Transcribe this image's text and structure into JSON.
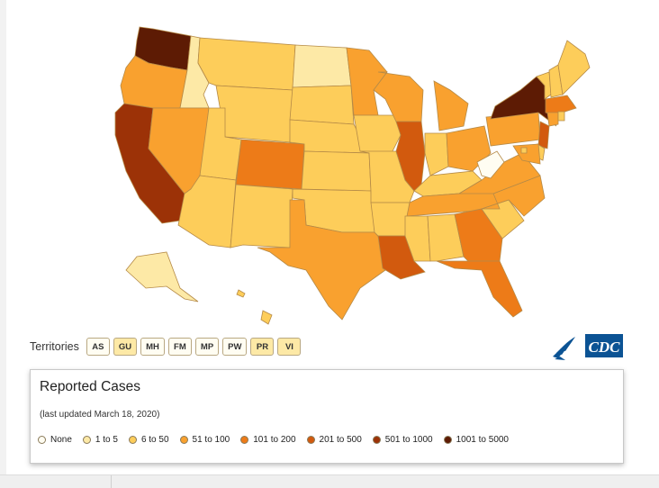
{
  "colors": {
    "none": "#fffdf2",
    "c1to5": "#fde9a6",
    "c6to50": "#fdcd5a",
    "c51to100": "#f9a12f",
    "c101to200": "#ed7b18",
    "c201to500": "#d25a0e",
    "c501to1000": "#9c3207",
    "c1001to5000": "#5d1b04",
    "border": "#b58a47",
    "cdc_blue": "#0b5394"
  },
  "territories": {
    "label": "Territories",
    "buttons": [
      {
        "code": "AS",
        "fill": "#fffdf2"
      },
      {
        "code": "GU",
        "fill": "#fde9a6"
      },
      {
        "code": "MH",
        "fill": "#fffdf2"
      },
      {
        "code": "FM",
        "fill": "#fffdf2"
      },
      {
        "code": "MP",
        "fill": "#fffdf2"
      },
      {
        "code": "PW",
        "fill": "#fffdf2"
      },
      {
        "code": "PR",
        "fill": "#fde9a6"
      },
      {
        "code": "VI",
        "fill": "#fde9a6"
      }
    ]
  },
  "logo": {
    "text": "CDC",
    "icon": "hhs-eagle-icon"
  },
  "legend": {
    "title": "Reported Cases",
    "subtitle": "(last updated March 18, 2020)",
    "items": [
      {
        "label": "None",
        "color": "#fffdf2"
      },
      {
        "label": "1 to 5",
        "color": "#fde9a6"
      },
      {
        "label": "6 to 50",
        "color": "#fdcd5a"
      },
      {
        "label": "51 to 100",
        "color": "#f9a12f"
      },
      {
        "label": "101 to 200",
        "color": "#ed7b18"
      },
      {
        "label": "201 to 500",
        "color": "#d25a0e"
      },
      {
        "label": "501 to 1000",
        "color": "#9c3207"
      },
      {
        "label": "1001 to 5000",
        "color": "#5d1b04"
      }
    ]
  },
  "states": [
    {
      "id": "WA",
      "category": "1001 to 5000"
    },
    {
      "id": "OR",
      "category": "51 to 100"
    },
    {
      "id": "CA",
      "category": "501 to 1000"
    },
    {
      "id": "ID",
      "category": "1 to 5"
    },
    {
      "id": "NV",
      "category": "51 to 100"
    },
    {
      "id": "MT",
      "category": "6 to 50"
    },
    {
      "id": "WY",
      "category": "6 to 50"
    },
    {
      "id": "UT",
      "category": "6 to 50"
    },
    {
      "id": "AZ",
      "category": "6 to 50"
    },
    {
      "id": "CO",
      "category": "101 to 200"
    },
    {
      "id": "NM",
      "category": "6 to 50"
    },
    {
      "id": "ND",
      "category": "1 to 5"
    },
    {
      "id": "SD",
      "category": "6 to 50"
    },
    {
      "id": "NE",
      "category": "6 to 50"
    },
    {
      "id": "KS",
      "category": "6 to 50"
    },
    {
      "id": "OK",
      "category": "6 to 50"
    },
    {
      "id": "TX",
      "category": "51 to 100"
    },
    {
      "id": "MN",
      "category": "51 to 100"
    },
    {
      "id": "IA",
      "category": "6 to 50"
    },
    {
      "id": "MO",
      "category": "6 to 50"
    },
    {
      "id": "AR",
      "category": "6 to 50"
    },
    {
      "id": "LA",
      "category": "201 to 500"
    },
    {
      "id": "WI",
      "category": "51 to 100"
    },
    {
      "id": "IL",
      "category": "201 to 500"
    },
    {
      "id": "MI",
      "category": "51 to 100"
    },
    {
      "id": "IN",
      "category": "6 to 50"
    },
    {
      "id": "OH",
      "category": "51 to 100"
    },
    {
      "id": "KY",
      "category": "6 to 50"
    },
    {
      "id": "TN",
      "category": "51 to 100"
    },
    {
      "id": "MS",
      "category": "6 to 50"
    },
    {
      "id": "AL",
      "category": "6 to 50"
    },
    {
      "id": "GA",
      "category": "101 to 200"
    },
    {
      "id": "FL",
      "category": "101 to 200"
    },
    {
      "id": "SC",
      "category": "6 to 50"
    },
    {
      "id": "NC",
      "category": "51 to 100"
    },
    {
      "id": "VA",
      "category": "51 to 100"
    },
    {
      "id": "WV",
      "category": "None"
    },
    {
      "id": "PA",
      "category": "51 to 100"
    },
    {
      "id": "NY",
      "category": "1001 to 5000"
    },
    {
      "id": "VT",
      "category": "6 to 50"
    },
    {
      "id": "NH",
      "category": "6 to 50"
    },
    {
      "id": "ME",
      "category": "6 to 50"
    },
    {
      "id": "MA",
      "category": "101 to 200"
    },
    {
      "id": "CT",
      "category": "51 to 100"
    },
    {
      "id": "RI",
      "category": "6 to 50"
    },
    {
      "id": "NJ",
      "category": "201 to 500"
    },
    {
      "id": "DE",
      "category": "6 to 50"
    },
    {
      "id": "MD",
      "category": "51 to 100"
    },
    {
      "id": "DC",
      "category": "6 to 50"
    },
    {
      "id": "AK",
      "category": "1 to 5"
    },
    {
      "id": "HI",
      "category": "6 to 50"
    }
  ]
}
